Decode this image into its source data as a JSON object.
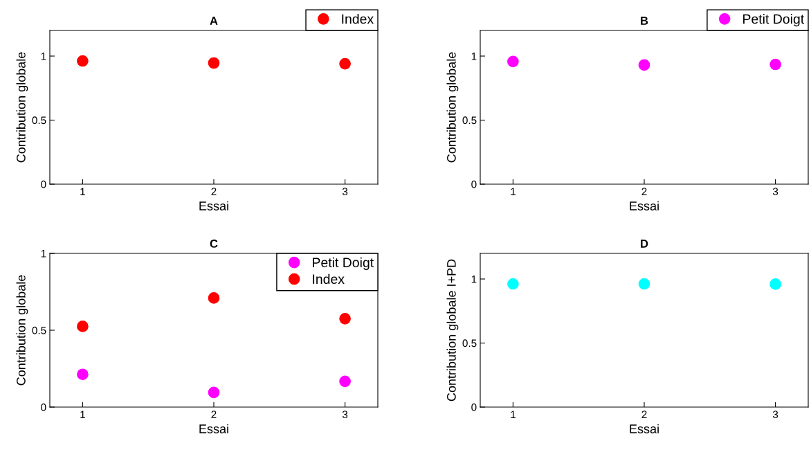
{
  "chart_data": [
    {
      "type": "scatter",
      "title": "A",
      "xlabel": "Essai",
      "ylabel": "Contribution globale",
      "x": [
        1,
        2,
        3
      ],
      "xlim": [
        0.75,
        3.25
      ],
      "xticks": [
        1,
        2,
        3
      ],
      "ylim": [
        0,
        1.2
      ],
      "yticks": [
        0,
        0.5,
        1
      ],
      "marker": "circle",
      "grid": false,
      "legend": "outside top right",
      "series": [
        {
          "name": "Index",
          "color": "#ff0000",
          "values": [
            0.962,
            0.946,
            0.94
          ]
        }
      ]
    },
    {
      "type": "scatter",
      "title": "B",
      "xlabel": "Essai",
      "ylabel": "Contribution globale",
      "x": [
        1,
        2,
        3
      ],
      "xlim": [
        0.75,
        3.25
      ],
      "xticks": [
        1,
        2,
        3
      ],
      "ylim": [
        0,
        1.2
      ],
      "yticks": [
        0,
        0.5,
        1
      ],
      "marker": "circle",
      "grid": false,
      "legend": "outside top right",
      "series": [
        {
          "name": "Petit Doigt",
          "color": "#ff00ff",
          "values": [
            0.957,
            0.93,
            0.935
          ]
        }
      ]
    },
    {
      "type": "scatter",
      "title": "C",
      "xlabel": "Essai",
      "ylabel": "Contribution globale",
      "x": [
        1,
        2,
        3
      ],
      "xlim": [
        0.75,
        3.25
      ],
      "xticks": [
        1,
        2,
        3
      ],
      "ylim": [
        0,
        1
      ],
      "yticks": [
        0,
        0.5,
        1
      ],
      "marker": "circle",
      "grid": false,
      "legend": "top right",
      "series": [
        {
          "name": "Petit Doigt",
          "color": "#ff00ff",
          "values": [
            0.213,
            0.095,
            0.167
          ]
        },
        {
          "name": "Index",
          "color": "#ff0000",
          "values": [
            0.525,
            0.71,
            0.575
          ]
        }
      ]
    },
    {
      "type": "scatter",
      "title": "D",
      "xlabel": "Essai",
      "ylabel": "Contribution globale I+PD",
      "x": [
        1,
        2,
        3
      ],
      "xlim": [
        0.75,
        3.25
      ],
      "xticks": [
        1,
        2,
        3
      ],
      "ylim": [
        0,
        1.2
      ],
      "yticks": [
        0,
        0.5,
        1
      ],
      "marker": "circle",
      "grid": false,
      "series": [
        {
          "color": "#00ffff",
          "values": [
            0.962,
            0.962,
            0.96
          ]
        }
      ]
    }
  ]
}
